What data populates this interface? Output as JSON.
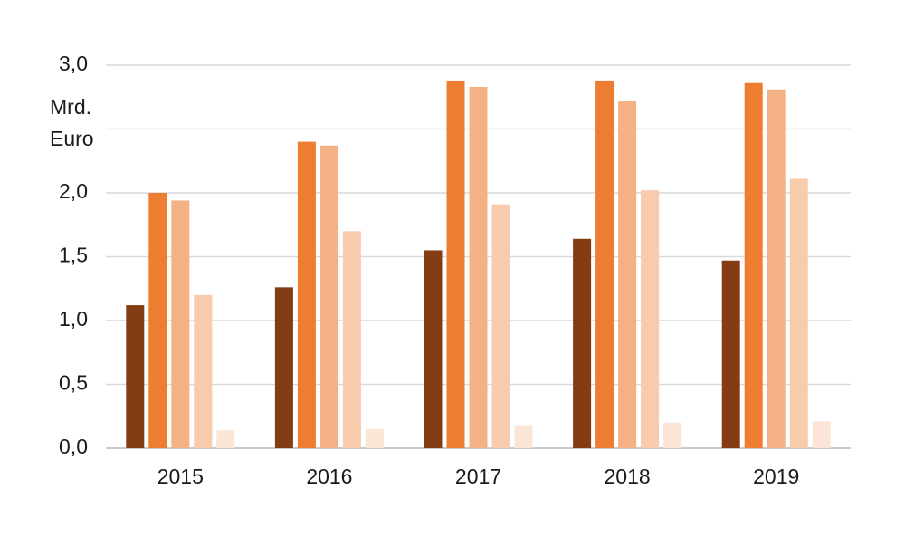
{
  "chart_data": {
    "type": "bar",
    "y_label": [
      "Mrd.",
      "Euro"
    ],
    "categories": [
      "2015",
      "2016",
      "2017",
      "2018",
      "2019"
    ],
    "series": [
      {
        "color": "#843c14",
        "values": [
          1.12,
          1.26,
          1.55,
          1.64,
          1.47
        ]
      },
      {
        "color": "#ed7d31",
        "values": [
          2.0,
          2.4,
          2.88,
          2.88,
          2.86
        ]
      },
      {
        "color": "#f4b183",
        "values": [
          1.94,
          2.37,
          2.83,
          2.72,
          2.81
        ]
      },
      {
        "color": "#f8cbad",
        "values": [
          1.2,
          1.7,
          1.91,
          2.02,
          2.11
        ]
      },
      {
        "color": "#fbe5d6",
        "values": [
          0.14,
          0.15,
          0.18,
          0.2,
          0.21
        ]
      }
    ],
    "ylim": [
      0,
      3
    ],
    "yticks": [
      {
        "value": 0,
        "label": "0,0"
      },
      {
        "value": 0.5,
        "label": "0,5"
      },
      {
        "value": 1,
        "label": "1,0"
      },
      {
        "value": 1.5,
        "label": "1,5"
      },
      {
        "value": 2,
        "label": "2,0"
      },
      {
        "value": 2.5,
        "label": null
      },
      {
        "value": 3,
        "label": "3,0"
      }
    ],
    "grid": true
  }
}
